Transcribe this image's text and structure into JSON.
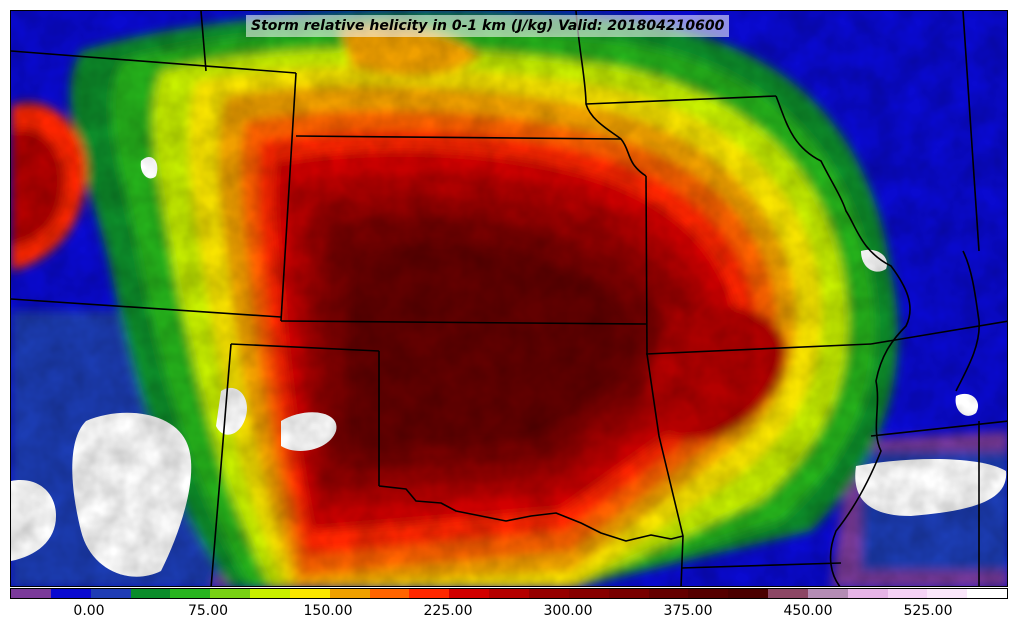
{
  "title": "Storm relative helicity in 0-1 km (J/kg) Valid: 201804210600",
  "colorbar": {
    "colors": [
      "#7b3a9a",
      "#0a0ad0",
      "#1e3cb4",
      "#0a8c2a",
      "#28b41e",
      "#78d214",
      "#c8f000",
      "#fae600",
      "#f0a000",
      "#ff6400",
      "#ff2800",
      "#d20000",
      "#b40000",
      "#960000",
      "#870000",
      "#780000",
      "#640000",
      "#550000",
      "#4a0000",
      "#8c4664",
      "#b48cb4",
      "#e6b4e6",
      "#f5d2f5",
      "#fae6fa",
      "#ffffff"
    ],
    "tick_labels": [
      "0.00",
      "75.00",
      "150.00",
      "225.00",
      "300.00",
      "375.00",
      "450.00",
      "525.00"
    ]
  },
  "map": {
    "field": "Storm relative helicity 0-1 km",
    "units": "J/kg",
    "valid": "201804210600",
    "region": "Central United States",
    "color_scale_range": [
      -37.5,
      600
    ]
  }
}
